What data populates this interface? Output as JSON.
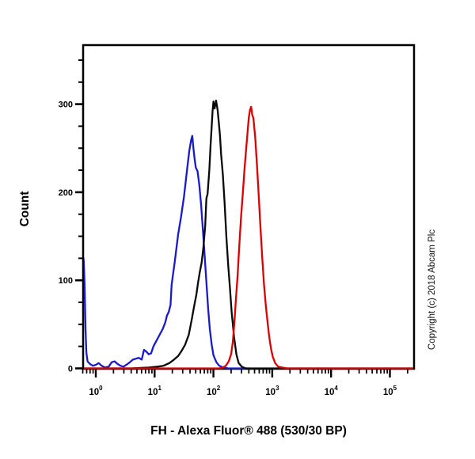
{
  "copyright": "Copyright (c) 2018 Abcam Plc",
  "chart_data": {
    "type": "line",
    "subtype": "flow-cytometry-histogram",
    "title": "",
    "xlabel": "FH - Alexa Fluor® 488 (530/30 BP)",
    "ylabel": "Count",
    "x_scale": "log10",
    "xlim_log10": [
      -0.225,
      5.4
    ],
    "ylim": [
      0,
      368
    ],
    "grid": false,
    "legend": "none",
    "x_major_tick_exponents": [
      0,
      1,
      2,
      3,
      4,
      5
    ],
    "x_tick_base": "10",
    "y_major_ticks": [
      0,
      100,
      200,
      300
    ],
    "y_minor_tick_step": 25,
    "y_minor_tick_max": 350,
    "series": [
      {
        "name": "blue",
        "color": "#1a1acc",
        "peak_log10x": 1.64,
        "peak_count": 264,
        "points_log10x_count": [
          [
            -0.225,
            0
          ],
          [
            -0.218,
            60
          ],
          [
            -0.213,
            126
          ],
          [
            -0.205,
            122
          ],
          [
            -0.19,
            95
          ],
          [
            -0.175,
            45
          ],
          [
            -0.16,
            18
          ],
          [
            -0.14,
            8
          ],
          [
            -0.1,
            5
          ],
          [
            -0.05,
            3
          ],
          [
            0.0,
            4
          ],
          [
            0.05,
            6
          ],
          [
            0.1,
            3
          ],
          [
            0.16,
            1
          ],
          [
            0.22,
            2
          ],
          [
            0.27,
            7
          ],
          [
            0.32,
            8
          ],
          [
            0.37,
            5
          ],
          [
            0.42,
            3
          ],
          [
            0.47,
            2
          ],
          [
            0.52,
            4
          ],
          [
            0.58,
            7
          ],
          [
            0.63,
            10
          ],
          [
            0.68,
            11
          ],
          [
            0.73,
            12
          ],
          [
            0.78,
            10
          ],
          [
            0.82,
            21
          ],
          [
            0.86,
            19
          ],
          [
            0.9,
            16
          ],
          [
            0.94,
            17
          ],
          [
            0.98,
            25
          ],
          [
            1.02,
            30
          ],
          [
            1.06,
            35
          ],
          [
            1.1,
            40
          ],
          [
            1.14,
            45
          ],
          [
            1.18,
            52
          ],
          [
            1.21,
            60
          ],
          [
            1.24,
            64
          ],
          [
            1.27,
            72
          ],
          [
            1.29,
            95
          ],
          [
            1.31,
            105
          ],
          [
            1.34,
            120
          ],
          [
            1.4,
            152
          ],
          [
            1.45,
            172
          ],
          [
            1.5,
            195
          ],
          [
            1.55,
            225
          ],
          [
            1.59,
            247
          ],
          [
            1.62,
            259
          ],
          [
            1.64,
            264
          ],
          [
            1.66,
            250
          ],
          [
            1.68,
            238
          ],
          [
            1.7,
            228
          ],
          [
            1.73,
            224
          ],
          [
            1.76,
            208
          ],
          [
            1.79,
            186
          ],
          [
            1.82,
            158
          ],
          [
            1.85,
            128
          ],
          [
            1.88,
            98
          ],
          [
            1.91,
            68
          ],
          [
            1.94,
            44
          ],
          [
            1.97,
            27
          ],
          [
            2.0,
            15
          ],
          [
            2.05,
            7
          ],
          [
            2.1,
            3
          ],
          [
            2.17,
            1
          ],
          [
            2.25,
            0
          ],
          [
            2.6,
            0
          ]
        ]
      },
      {
        "name": "black",
        "color": "#0a0a0a",
        "peak_log10x": 2.0,
        "peak_count": 304,
        "points_log10x_count": [
          [
            -0.225,
            0
          ],
          [
            0.6,
            0
          ],
          [
            0.9,
            1
          ],
          [
            1.05,
            2
          ],
          [
            1.15,
            3
          ],
          [
            1.25,
            6
          ],
          [
            1.33,
            10
          ],
          [
            1.4,
            14
          ],
          [
            1.46,
            20
          ],
          [
            1.52,
            27
          ],
          [
            1.58,
            38
          ],
          [
            1.63,
            55
          ],
          [
            1.67,
            70
          ],
          [
            1.71,
            84
          ],
          [
            1.74,
            98
          ],
          [
            1.77,
            110
          ],
          [
            1.8,
            120
          ],
          [
            1.83,
            138
          ],
          [
            1.86,
            162
          ],
          [
            1.88,
            193
          ],
          [
            1.9,
            198
          ],
          [
            1.93,
            225
          ],
          [
            1.95,
            252
          ],
          [
            1.97,
            275
          ],
          [
            1.985,
            292
          ],
          [
            2.0,
            303
          ],
          [
            2.02,
            295
          ],
          [
            2.045,
            304
          ],
          [
            2.07,
            294
          ],
          [
            2.09,
            280
          ],
          [
            2.11,
            265
          ],
          [
            2.13,
            243
          ],
          [
            2.16,
            220
          ],
          [
            2.19,
            188
          ],
          [
            2.22,
            150
          ],
          [
            2.25,
            118
          ],
          [
            2.28,
            92
          ],
          [
            2.31,
            64
          ],
          [
            2.35,
            36
          ],
          [
            2.39,
            16
          ],
          [
            2.43,
            6
          ],
          [
            2.48,
            2
          ],
          [
            2.55,
            0
          ],
          [
            5.4,
            0
          ]
        ]
      },
      {
        "name": "red",
        "color": "#dd0000",
        "peak_log10x": 2.64,
        "peak_count": 297,
        "points_log10x_count": [
          [
            -0.225,
            0
          ],
          [
            1.8,
            0
          ],
          [
            2.1,
            0
          ],
          [
            2.16,
            1
          ],
          [
            2.21,
            3
          ],
          [
            2.26,
            8
          ],
          [
            2.3,
            16
          ],
          [
            2.33,
            30
          ],
          [
            2.36,
            55
          ],
          [
            2.38,
            76
          ],
          [
            2.41,
            105
          ],
          [
            2.44,
            140
          ],
          [
            2.47,
            172
          ],
          [
            2.5,
            200
          ],
          [
            2.53,
            228
          ],
          [
            2.56,
            252
          ],
          [
            2.58,
            268
          ],
          [
            2.6,
            284
          ],
          [
            2.62,
            293
          ],
          [
            2.64,
            297
          ],
          [
            2.66,
            288
          ],
          [
            2.68,
            284
          ],
          [
            2.71,
            262
          ],
          [
            2.73,
            242
          ],
          [
            2.75,
            220
          ],
          [
            2.77,
            196
          ],
          [
            2.8,
            160
          ],
          [
            2.83,
            125
          ],
          [
            2.86,
            95
          ],
          [
            2.89,
            72
          ],
          [
            2.92,
            52
          ],
          [
            2.95,
            35
          ],
          [
            2.98,
            22
          ],
          [
            3.01,
            13
          ],
          [
            3.05,
            6
          ],
          [
            3.1,
            2
          ],
          [
            3.17,
            1
          ],
          [
            3.25,
            0
          ],
          [
            5.4,
            0
          ]
        ]
      }
    ]
  }
}
